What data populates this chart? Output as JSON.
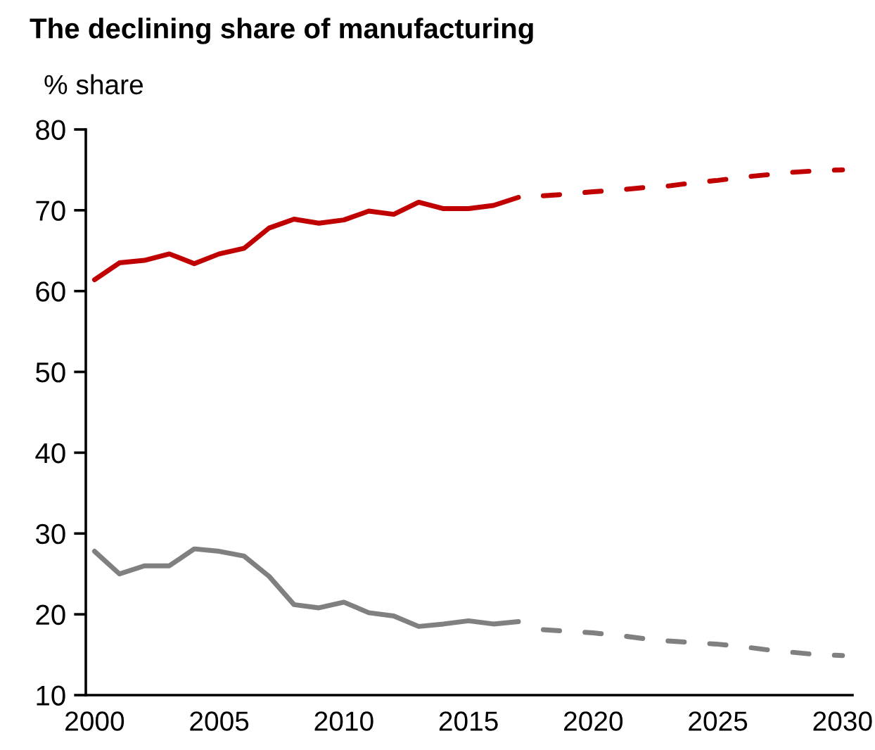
{
  "chart_data": {
    "type": "line",
    "title": "The declining share of manufacturing",
    "ylabel": "% share",
    "xlim": [
      1999.65,
      2030.4
    ],
    "xticks": [
      2000,
      2005,
      2010,
      2015,
      2020,
      2025,
      2030
    ],
    "ylim": [
      10,
      80
    ],
    "yticks": [
      10,
      20,
      30,
      40,
      50,
      60,
      70,
      80
    ],
    "series": [
      {
        "color": "#c00000",
        "line_style": "solid",
        "x": [
          2000,
          2001,
          2002,
          2003,
          2004,
          2005,
          2006,
          2007,
          2008,
          2009,
          2010,
          2011,
          2012,
          2013,
          2014,
          2015,
          2016,
          2017
        ],
        "values": [
          61.4,
          63.5,
          63.8,
          64.6,
          63.4,
          64.6,
          65.3,
          67.8,
          68.9,
          68.4,
          68.8,
          69.9,
          69.5,
          71.0,
          70.2,
          70.2,
          70.6,
          71.6
        ]
      },
      {
        "color": "#c00000",
        "line_style": "dashed",
        "x": [
          2018,
          2019,
          2020,
          2021,
          2022,
          2023,
          2024,
          2025,
          2026,
          2027,
          2028,
          2029,
          2030
        ],
        "values": [
          71.8,
          72.0,
          72.3,
          72.5,
          72.8,
          73.0,
          73.4,
          73.7,
          74.1,
          74.4,
          74.7,
          74.9,
          75.0
        ]
      },
      {
        "color": "#808080",
        "line_style": "solid",
        "x": [
          2000,
          2001,
          2002,
          2003,
          2004,
          2005,
          2006,
          2007,
          2008,
          2009,
          2010,
          2011,
          2012,
          2013,
          2014,
          2015,
          2016,
          2017
        ],
        "values": [
          27.8,
          25.0,
          26.0,
          26.0,
          28.1,
          27.8,
          27.2,
          24.7,
          21.2,
          20.8,
          21.5,
          20.2,
          19.8,
          18.5,
          18.8,
          19.2,
          18.8,
          19.1
        ]
      },
      {
        "color": "#808080",
        "line_style": "dashed",
        "x": [
          2018,
          2019,
          2020,
          2021,
          2022,
          2023,
          2024,
          2025,
          2026,
          2027,
          2028,
          2029,
          2030
        ],
        "values": [
          18.1,
          17.9,
          17.7,
          17.4,
          17.0,
          16.7,
          16.5,
          16.3,
          16.0,
          15.6,
          15.3,
          15.0,
          14.9
        ]
      }
    ]
  }
}
